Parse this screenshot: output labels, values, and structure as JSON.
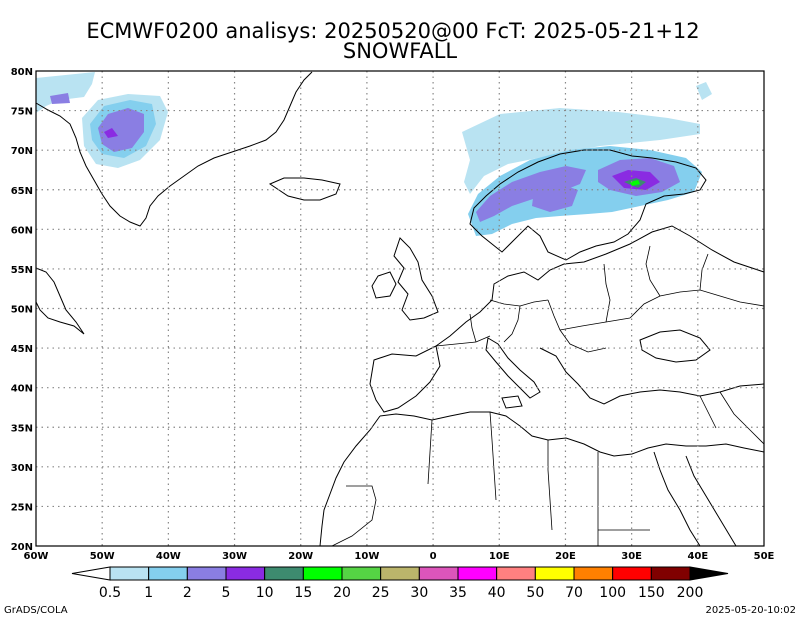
{
  "title": {
    "line1": "ECMWF0200 analisys: 20250520@00 FcT: 2025-05-21+12",
    "line2": "SNOWFALL"
  },
  "map": {
    "lon_range": [
      -60,
      50
    ],
    "lat_range": [
      20,
      80
    ],
    "grid": true,
    "lon_ticks": [
      {
        "v": -60,
        "label": "60W"
      },
      {
        "v": -50,
        "label": "50W"
      },
      {
        "v": -40,
        "label": "40W"
      },
      {
        "v": -30,
        "label": "30W"
      },
      {
        "v": -20,
        "label": "20W"
      },
      {
        "v": -10,
        "label": "10W"
      },
      {
        "v": 0,
        "label": "0"
      },
      {
        "v": 10,
        "label": "10E"
      },
      {
        "v": 20,
        "label": "20E"
      },
      {
        "v": 30,
        "label": "30E"
      },
      {
        "v": 40,
        "label": "40E"
      },
      {
        "v": 50,
        "label": "50E"
      }
    ],
    "lat_ticks": [
      {
        "v": 80,
        "label": "80N"
      },
      {
        "v": 75,
        "label": "75N"
      },
      {
        "v": 70,
        "label": "70N"
      },
      {
        "v": 65,
        "label": "65N"
      },
      {
        "v": 60,
        "label": "60N"
      },
      {
        "v": 55,
        "label": "55N"
      },
      {
        "v": 50,
        "label": "50N"
      },
      {
        "v": 45,
        "label": "45N"
      },
      {
        "v": 40,
        "label": "40N"
      },
      {
        "v": 35,
        "label": "35N"
      },
      {
        "v": 30,
        "label": "30N"
      },
      {
        "v": 25,
        "label": "25N"
      },
      {
        "v": 20,
        "label": "20N"
      }
    ]
  },
  "colorbar": {
    "colors": [
      "#ffffff",
      "#b9e3f2",
      "#84cfee",
      "#8a7ee3",
      "#8a2be2",
      "#3d8b6f",
      "#00ff00",
      "#55d444",
      "#bbb56b",
      "#dd55bb",
      "#ff00ff",
      "#ff8080",
      "#ffff00",
      "#ff8000",
      "#ff0000",
      "#800000",
      "#000000"
    ],
    "labels": [
      "0.5",
      "1",
      "2",
      "5",
      "10",
      "15",
      "20",
      "25",
      "30",
      "35",
      "40",
      "50",
      "70",
      "100",
      "150",
      "200"
    ]
  },
  "footer": {
    "left": "GrADS/COLA",
    "right": "2025-05-20-10:02"
  }
}
